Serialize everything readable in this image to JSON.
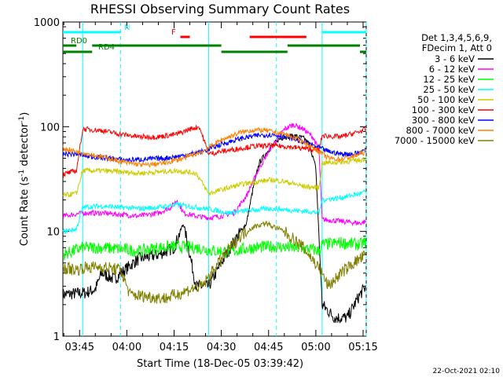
{
  "chart_data": {
    "type": "line",
    "title": "RHESSI Observing Summary Count Rates",
    "xlabel": "Start Time (18-Dec-05 03:39:42)",
    "ylabel": "Count Rate (s",
    "ylabel_sup": "-1",
    "ylabel_tail": " detector",
    "ylabel_sup2": "-1",
    "ylabel_end": ")",
    "yscale": "log",
    "ylim": [
      1,
      1000
    ],
    "xlim_minutes": [
      39.7,
      78.0
    ],
    "x_tick_labels": [
      "03:45",
      "04:00",
      "04:15",
      "04:30",
      "04:45",
      "05:00",
      "05:15"
    ],
    "x_tick_minutes": [
      45,
      60,
      75,
      90,
      105,
      120,
      135
    ],
    "y_tick_labels": [
      "1",
      "10",
      "100",
      "1000"
    ],
    "y_tick_values": [
      1,
      10,
      100,
      1000
    ],
    "grid": false,
    "legend_header": [
      "Det 1,3,4,5,6,9,",
      "FDecim 1, Att 0"
    ],
    "legend_position": "right",
    "series": [
      {
        "name": "3 - 6 keV",
        "color": "#000000",
        "points": [
          [
            39.7,
            2.5
          ],
          [
            47,
            2.6
          ],
          [
            50,
            2.8
          ],
          [
            52,
            4
          ],
          [
            56,
            3.5
          ],
          [
            62,
            5
          ],
          [
            64,
            5.5
          ],
          [
            70,
            6
          ],
          [
            75,
            7
          ],
          [
            78,
            12
          ],
          [
            82,
            3
          ],
          [
            86,
            3
          ],
          [
            90,
            5
          ],
          [
            94,
            8
          ],
          [
            98,
            12
          ],
          [
            100,
            25
          ],
          [
            102,
            45
          ],
          [
            105,
            60
          ],
          [
            108,
            75
          ],
          [
            110,
            80
          ],
          [
            113,
            82
          ],
          [
            116,
            78
          ],
          [
            118,
            68
          ],
          [
            120,
            40
          ],
          [
            122,
            2
          ],
          [
            126,
            1.5
          ],
          [
            130,
            1.5
          ],
          [
            134,
            2.5
          ],
          [
            136,
            3
          ]
        ]
      },
      {
        "name": "6 - 12 keV",
        "color": "#ff00ff",
        "points": [
          [
            39.7,
            14
          ],
          [
            46,
            15
          ],
          [
            52,
            15
          ],
          [
            58,
            14.5
          ],
          [
            64,
            14
          ],
          [
            70,
            15
          ],
          [
            74,
            17
          ],
          [
            76,
            20
          ],
          [
            78,
            15
          ],
          [
            82,
            14
          ],
          [
            86,
            13.5
          ],
          [
            90,
            14
          ],
          [
            94,
            15
          ],
          [
            98,
            22
          ],
          [
            102,
            40
          ],
          [
            106,
            65
          ],
          [
            110,
            95
          ],
          [
            113,
            105
          ],
          [
            116,
            95
          ],
          [
            119,
            80
          ],
          [
            121,
            60
          ],
          [
            122,
            13
          ],
          [
            128,
            12.5
          ],
          [
            134,
            12
          ],
          [
            136,
            12.5
          ]
        ]
      },
      {
        "name": "12 - 25 keV",
        "color": "#00ff00",
        "points": [
          [
            39.7,
            6
          ],
          [
            46,
            7
          ],
          [
            52,
            7
          ],
          [
            58,
            6.8
          ],
          [
            64,
            6.5
          ],
          [
            70,
            7
          ],
          [
            76,
            7.2
          ],
          [
            82,
            7
          ],
          [
            88,
            6.5
          ],
          [
            94,
            6.5
          ],
          [
            100,
            7
          ],
          [
            106,
            7.2
          ],
          [
            112,
            7
          ],
          [
            118,
            6.8
          ],
          [
            121,
            6.5
          ],
          [
            122,
            7.5
          ],
          [
            128,
            7.8
          ],
          [
            134,
            7.5
          ],
          [
            136,
            8
          ]
        ]
      },
      {
        "name": "25 - 50 keV",
        "color": "#00ffff",
        "points": [
          [
            39.7,
            10
          ],
          [
            44,
            10.5
          ],
          [
            46,
            17
          ],
          [
            52,
            17.5
          ],
          [
            58,
            17
          ],
          [
            64,
            16.5
          ],
          [
            70,
            17
          ],
          [
            76,
            18
          ],
          [
            82,
            17
          ],
          [
            88,
            16
          ],
          [
            92,
            15
          ],
          [
            96,
            15.5
          ],
          [
            100,
            16
          ],
          [
            106,
            16.5
          ],
          [
            112,
            16
          ],
          [
            118,
            15.5
          ],
          [
            121,
            15
          ],
          [
            122,
            20
          ],
          [
            128,
            21
          ],
          [
            134,
            23
          ],
          [
            136,
            24
          ]
        ]
      },
      {
        "name": "50 - 100 keV",
        "color": "#cccc00",
        "points": [
          [
            39.7,
            22
          ],
          [
            44,
            23
          ],
          [
            46,
            38
          ],
          [
            52,
            38
          ],
          [
            58,
            37
          ],
          [
            64,
            36
          ],
          [
            70,
            37
          ],
          [
            76,
            38
          ],
          [
            82,
            36
          ],
          [
            86,
            23
          ],
          [
            90,
            25
          ],
          [
            96,
            28
          ],
          [
            102,
            30
          ],
          [
            106,
            31
          ],
          [
            110,
            30
          ],
          [
            116,
            27
          ],
          [
            121,
            26
          ],
          [
            122,
            45
          ],
          [
            128,
            46
          ],
          [
            134,
            48
          ],
          [
            136,
            50
          ]
        ]
      },
      {
        "name": "100 - 300 keV",
        "color": "#ff0000",
        "points": [
          [
            39.7,
            35
          ],
          [
            44,
            38
          ],
          [
            46,
            95
          ],
          [
            52,
            92
          ],
          [
            58,
            85
          ],
          [
            64,
            80
          ],
          [
            70,
            80
          ],
          [
            76,
            85
          ],
          [
            80,
            95
          ],
          [
            83,
            100
          ],
          [
            86,
            55
          ],
          [
            90,
            58
          ],
          [
            96,
            62
          ],
          [
            100,
            65
          ],
          [
            106,
            66
          ],
          [
            110,
            65
          ],
          [
            116,
            62
          ],
          [
            121,
            60
          ],
          [
            122,
            82
          ],
          [
            128,
            80
          ],
          [
            134,
            90
          ],
          [
            136,
            95
          ]
        ]
      },
      {
        "name": "300 - 800 keV",
        "color": "#0000ff",
        "points": [
          [
            39.7,
            55
          ],
          [
            44,
            55
          ],
          [
            48,
            52
          ],
          [
            54,
            50
          ],
          [
            60,
            48
          ],
          [
            66,
            49
          ],
          [
            72,
            50
          ],
          [
            78,
            53
          ],
          [
            84,
            58
          ],
          [
            90,
            68
          ],
          [
            96,
            77
          ],
          [
            102,
            83
          ],
          [
            106,
            84
          ],
          [
            110,
            81
          ],
          [
            116,
            72
          ],
          [
            121,
            63
          ],
          [
            124,
            58
          ],
          [
            128,
            55
          ],
          [
            132,
            55
          ],
          [
            136,
            60
          ]
        ]
      },
      {
        "name": "800 - 7000 keV",
        "color": "#ff8000",
        "points": [
          [
            39.7,
            62
          ],
          [
            44,
            58
          ],
          [
            48,
            55
          ],
          [
            54,
            50
          ],
          [
            60,
            45
          ],
          [
            66,
            43
          ],
          [
            72,
            45
          ],
          [
            78,
            50
          ],
          [
            84,
            58
          ],
          [
            90,
            75
          ],
          [
            96,
            88
          ],
          [
            100,
            93
          ],
          [
            104,
            92
          ],
          [
            110,
            85
          ],
          [
            116,
            72
          ],
          [
            121,
            58
          ],
          [
            124,
            50
          ],
          [
            128,
            49
          ],
          [
            132,
            52
          ],
          [
            136,
            58
          ]
        ]
      },
      {
        "name": "7000 - 15000 keV",
        "color": "#808000",
        "points": [
          [
            39.7,
            4.5
          ],
          [
            44,
            4.3
          ],
          [
            46,
            4.5
          ],
          [
            52,
            4.6
          ],
          [
            58,
            4.3
          ],
          [
            61,
            2.5
          ],
          [
            66,
            2.4
          ],
          [
            72,
            2.3
          ],
          [
            76,
            2.5
          ],
          [
            80,
            2.8
          ],
          [
            84,
            3
          ],
          [
            88,
            4.5
          ],
          [
            92,
            6.5
          ],
          [
            96,
            9
          ],
          [
            100,
            11
          ],
          [
            104,
            12
          ],
          [
            110,
            10
          ],
          [
            116,
            7
          ],
          [
            121,
            4.5
          ],
          [
            124,
            3
          ],
          [
            128,
            4
          ],
          [
            132,
            5
          ],
          [
            136,
            6
          ]
        ]
      }
    ],
    "annotations": [
      {
        "label": "N",
        "color": "#00ffff",
        "y": 838,
        "segments": [
          [
            39.7,
            58
          ],
          [
            122,
            136
          ]
        ]
      },
      {
        "label": "F",
        "color": "#ff0000",
        "y": 740,
        "segments": [
          [
            77,
            80
          ],
          [
            99,
            117
          ]
        ]
      },
      {
        "label": "RD0",
        "color": "#008000",
        "y": 610,
        "segments": [
          [
            39.7,
            44
          ],
          [
            49,
            90
          ],
          [
            111,
            134
          ]
        ]
      },
      {
        "label": "RD4",
        "color": "#008000",
        "y": 520,
        "segments": [
          [
            39.7,
            49
          ],
          [
            90,
            111
          ],
          [
            134,
            136
          ]
        ]
      }
    ],
    "vlines_solid_minutes": [
      46,
      86,
      122
    ],
    "vlines_dashed_minutes": [
      58,
      107.5,
      136
    ],
    "footer": "22-Oct-2021 02:10"
  }
}
